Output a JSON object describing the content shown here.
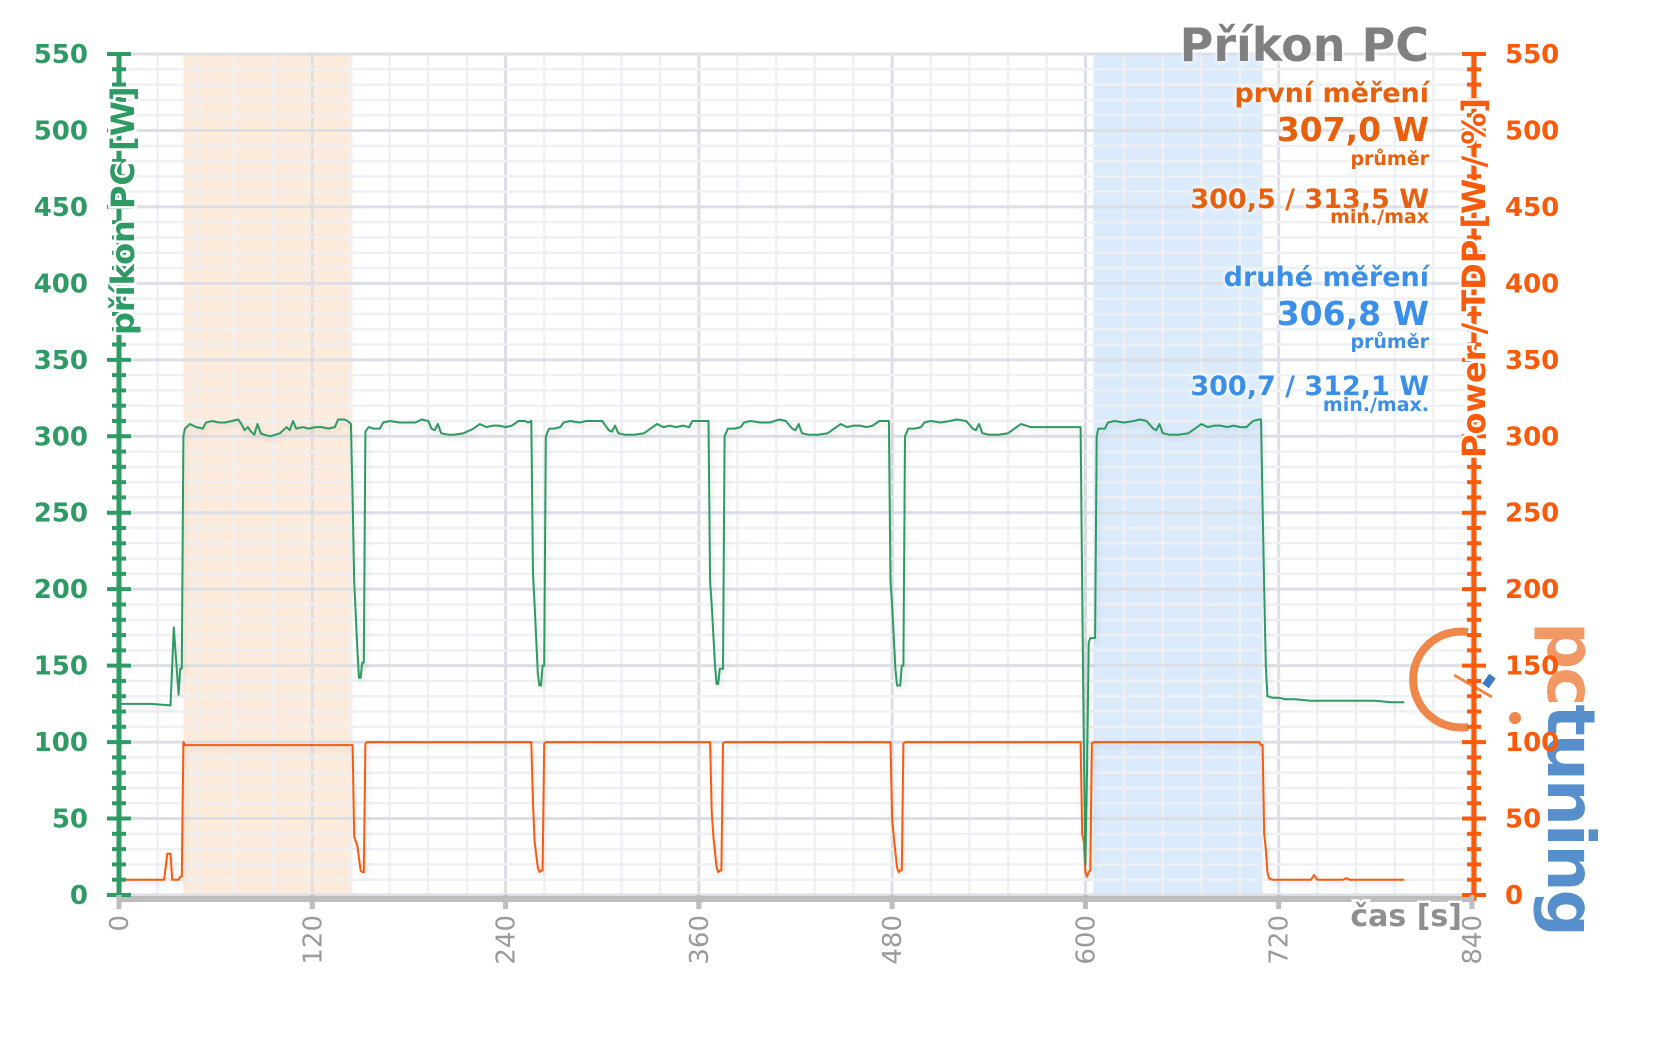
{
  "chart_data": {
    "type": "line",
    "title": "Příkon PC",
    "xlabel": "čas [s]",
    "ylabel_left": "příkon PC [W]",
    "ylabel_right": "Power / TDP [W / %]",
    "xlim": [
      0,
      840
    ],
    "ylim": [
      0,
      550
    ],
    "x_ticks": [
      0,
      120,
      240,
      360,
      480,
      600,
      720,
      840
    ],
    "y_ticks": [
      0,
      50,
      100,
      150,
      200,
      250,
      300,
      350,
      400,
      450,
      500,
      550
    ],
    "grid": true,
    "highlight_bands": [
      {
        "name": "první měření",
        "x_start": 40,
        "x_end": 145,
        "color": "#fde9d6"
      },
      {
        "name": "druhé měření",
        "x_start": 605,
        "x_end": 710,
        "color": "#d6e8fb"
      }
    ],
    "series": [
      {
        "name": "příkon PC",
        "color": "#2e9a64",
        "axis": "left",
        "points": [
          [
            0,
            125
          ],
          [
            20,
            125
          ],
          [
            32,
            124
          ],
          [
            33,
            150
          ],
          [
            34,
            175
          ],
          [
            35,
            160
          ],
          [
            37,
            131
          ],
          [
            38,
            148
          ],
          [
            39,
            148
          ],
          [
            40,
            300
          ],
          [
            41,
            305
          ],
          [
            44,
            308
          ],
          [
            48,
            306
          ],
          [
            52,
            305
          ],
          [
            54,
            309
          ],
          [
            58,
            310
          ],
          [
            62,
            309
          ],
          [
            66,
            309
          ],
          [
            70,
            310
          ],
          [
            74,
            311
          ],
          [
            76,
            308
          ],
          [
            78,
            304
          ],
          [
            80,
            306
          ],
          [
            82,
            303
          ],
          [
            84,
            301
          ],
          [
            86,
            308
          ],
          [
            88,
            302
          ],
          [
            90,
            301
          ],
          [
            94,
            300
          ],
          [
            100,
            302
          ],
          [
            104,
            306
          ],
          [
            106,
            304
          ],
          [
            108,
            310
          ],
          [
            110,
            305
          ],
          [
            114,
            306
          ],
          [
            118,
            305
          ],
          [
            122,
            306
          ],
          [
            126,
            306
          ],
          [
            130,
            305
          ],
          [
            134,
            306
          ],
          [
            136,
            311
          ],
          [
            140,
            311
          ],
          [
            142,
            310
          ],
          [
            144,
            308
          ],
          [
            145,
            260
          ],
          [
            146,
            205
          ],
          [
            148,
            160
          ],
          [
            149,
            142
          ],
          [
            150,
            142
          ],
          [
            151,
            152
          ],
          [
            152,
            152
          ],
          [
            153,
            303
          ],
          [
            155,
            306
          ],
          [
            158,
            305
          ],
          [
            162,
            305
          ],
          [
            164,
            309
          ],
          [
            168,
            310
          ],
          [
            174,
            309
          ],
          [
            178,
            309
          ],
          [
            184,
            309
          ],
          [
            188,
            311
          ],
          [
            192,
            310
          ],
          [
            194,
            305
          ],
          [
            196,
            304
          ],
          [
            198,
            308
          ],
          [
            200,
            302
          ],
          [
            204,
            301
          ],
          [
            208,
            301
          ],
          [
            214,
            302
          ],
          [
            220,
            305
          ],
          [
            224,
            308
          ],
          [
            228,
            306
          ],
          [
            232,
            307
          ],
          [
            236,
            307
          ],
          [
            240,
            306
          ],
          [
            244,
            307
          ],
          [
            248,
            310
          ],
          [
            252,
            310
          ],
          [
            254,
            309
          ],
          [
            256,
            310
          ],
          [
            257,
            210
          ],
          [
            258,
            190
          ],
          [
            260,
            145
          ],
          [
            261,
            137
          ],
          [
            262,
            137
          ],
          [
            263,
            150
          ],
          [
            264,
            150
          ],
          [
            265,
            300
          ],
          [
            267,
            305
          ],
          [
            270,
            305
          ],
          [
            274,
            306
          ],
          [
            276,
            309
          ],
          [
            280,
            310
          ],
          [
            286,
            309
          ],
          [
            290,
            310
          ],
          [
            294,
            310
          ],
          [
            300,
            310
          ],
          [
            304,
            304
          ],
          [
            306,
            303
          ],
          [
            308,
            307
          ],
          [
            310,
            302
          ],
          [
            314,
            301
          ],
          [
            320,
            301
          ],
          [
            326,
            302
          ],
          [
            330,
            305
          ],
          [
            334,
            308
          ],
          [
            338,
            306
          ],
          [
            342,
            307
          ],
          [
            346,
            306
          ],
          [
            350,
            307
          ],
          [
            354,
            306
          ],
          [
            356,
            310
          ],
          [
            360,
            310
          ],
          [
            366,
            310
          ],
          [
            367,
            205
          ],
          [
            368,
            190
          ],
          [
            370,
            150
          ],
          [
            371,
            138
          ],
          [
            372,
            138
          ],
          [
            373,
            148
          ],
          [
            375,
            148
          ],
          [
            376,
            300
          ],
          [
            378,
            305
          ],
          [
            382,
            305
          ],
          [
            386,
            306
          ],
          [
            388,
            309
          ],
          [
            392,
            310
          ],
          [
            398,
            309
          ],
          [
            404,
            309
          ],
          [
            410,
            311
          ],
          [
            414,
            310
          ],
          [
            418,
            305
          ],
          [
            420,
            304
          ],
          [
            422,
            308
          ],
          [
            424,
            302
          ],
          [
            428,
            301
          ],
          [
            434,
            301
          ],
          [
            440,
            302
          ],
          [
            444,
            305
          ],
          [
            448,
            308
          ],
          [
            452,
            306
          ],
          [
            456,
            307
          ],
          [
            460,
            307
          ],
          [
            464,
            306
          ],
          [
            468,
            307
          ],
          [
            472,
            310
          ],
          [
            476,
            310
          ],
          [
            478,
            310
          ],
          [
            479,
            205
          ],
          [
            480,
            190
          ],
          [
            482,
            148
          ],
          [
            483,
            137
          ],
          [
            485,
            137
          ],
          [
            486,
            150
          ],
          [
            487,
            150
          ],
          [
            488,
            300
          ],
          [
            490,
            305
          ],
          [
            494,
            305
          ],
          [
            498,
            306
          ],
          [
            500,
            309
          ],
          [
            504,
            310
          ],
          [
            510,
            309
          ],
          [
            516,
            310
          ],
          [
            520,
            311
          ],
          [
            526,
            310
          ],
          [
            530,
            305
          ],
          [
            532,
            304
          ],
          [
            534,
            308
          ],
          [
            536,
            302
          ],
          [
            540,
            301
          ],
          [
            546,
            301
          ],
          [
            552,
            302
          ],
          [
            556,
            305
          ],
          [
            560,
            308
          ],
          [
            566,
            306
          ],
          [
            570,
            306
          ],
          [
            576,
            306
          ],
          [
            582,
            306
          ],
          [
            586,
            306
          ],
          [
            590,
            306
          ],
          [
            597,
            306
          ],
          [
            598,
            200
          ],
          [
            599,
            100
          ],
          [
            600,
            20
          ],
          [
            601,
            80
          ],
          [
            602,
            165
          ],
          [
            603,
            168
          ],
          [
            606,
            168
          ],
          [
            607,
            300
          ],
          [
            608,
            305
          ],
          [
            612,
            305
          ],
          [
            614,
            309
          ],
          [
            618,
            310
          ],
          [
            624,
            309
          ],
          [
            630,
            310
          ],
          [
            634,
            311
          ],
          [
            638,
            310
          ],
          [
            642,
            305
          ],
          [
            644,
            304
          ],
          [
            646,
            308
          ],
          [
            648,
            302
          ],
          [
            652,
            301
          ],
          [
            658,
            301
          ],
          [
            664,
            302
          ],
          [
            668,
            305
          ],
          [
            672,
            308
          ],
          [
            676,
            306
          ],
          [
            680,
            307
          ],
          [
            684,
            307
          ],
          [
            688,
            306
          ],
          [
            692,
            307
          ],
          [
            696,
            306
          ],
          [
            700,
            306
          ],
          [
            704,
            310
          ],
          [
            708,
            311
          ],
          [
            709,
            311
          ],
          [
            711,
            200
          ],
          [
            712,
            150
          ],
          [
            713,
            130
          ],
          [
            716,
            129
          ],
          [
            720,
            129
          ],
          [
            724,
            128
          ],
          [
            730,
            128
          ],
          [
            740,
            127
          ],
          [
            750,
            127
          ],
          [
            760,
            127
          ],
          [
            770,
            127
          ],
          [
            780,
            127
          ],
          [
            790,
            126
          ],
          [
            798,
            126
          ]
        ]
      },
      {
        "name": "Power / TDP",
        "color": "#fa5a0a",
        "axis": "right",
        "points": [
          [
            0,
            10
          ],
          [
            20,
            10
          ],
          [
            28,
            10
          ],
          [
            30,
            27
          ],
          [
            32,
            27
          ],
          [
            33,
            10
          ],
          [
            35,
            10
          ],
          [
            37,
            10
          ],
          [
            38,
            12
          ],
          [
            39,
            12
          ],
          [
            40,
            100
          ],
          [
            41,
            98
          ],
          [
            145,
            98
          ],
          [
            146,
            38
          ],
          [
            148,
            32
          ],
          [
            150,
            16
          ],
          [
            151,
            15
          ],
          [
            152,
            15
          ],
          [
            153,
            99
          ],
          [
            154,
            100
          ],
          [
            256,
            100
          ],
          [
            257,
            60
          ],
          [
            258,
            35
          ],
          [
            260,
            18
          ],
          [
            261,
            15
          ],
          [
            262,
            16
          ],
          [
            263,
            16
          ],
          [
            264,
            99
          ],
          [
            265,
            100
          ],
          [
            367,
            100
          ],
          [
            368,
            55
          ],
          [
            369,
            38
          ],
          [
            371,
            18
          ],
          [
            372,
            15
          ],
          [
            373,
            16
          ],
          [
            374,
            16
          ],
          [
            375,
            99
          ],
          [
            376,
            100
          ],
          [
            479,
            100
          ],
          [
            480,
            50
          ],
          [
            481,
            38
          ],
          [
            483,
            18
          ],
          [
            484,
            15
          ],
          [
            485,
            16
          ],
          [
            486,
            16
          ],
          [
            487,
            99
          ],
          [
            488,
            100
          ],
          [
            597,
            100
          ],
          [
            598,
            40
          ],
          [
            599,
            35
          ],
          [
            600,
            15
          ],
          [
            601,
            12
          ],
          [
            602,
            15
          ],
          [
            603,
            16
          ],
          [
            604,
            99
          ],
          [
            605,
            100
          ],
          [
            708,
            100
          ],
          [
            709,
            98
          ],
          [
            710,
            98
          ],
          [
            711,
            40
          ],
          [
            712,
            30
          ],
          [
            713,
            15
          ],
          [
            714,
            11
          ],
          [
            716,
            10
          ],
          [
            740,
            10
          ],
          [
            742,
            13
          ],
          [
            744,
            10
          ],
          [
            760,
            10
          ],
          [
            762,
            11
          ],
          [
            764,
            10
          ],
          [
            798,
            10
          ]
        ]
      }
    ]
  },
  "title": "Příkon PC",
  "first_measurement": {
    "label": "první měření",
    "avg": "307,0 W",
    "avg_label": "průměr",
    "minmax": "300,5 / 313,5 W",
    "minmax_label": "min./max",
    "color": "#e8600e"
  },
  "second_measurement": {
    "label": "druhé měření",
    "avg": "306,8 W",
    "avg_label": "průměr",
    "minmax": "300,7 / 312,1 W",
    "minmax_label": "min./max.",
    "color": "#3b8fe8"
  },
  "axes": {
    "left_label": "příkon PC [W]",
    "right_label": "Power / TDP [W / %]",
    "x_label": "čas [s]",
    "left_color": "#2e9a64",
    "right_color": "#fa5a0a",
    "x_color": "#999999"
  },
  "logo": {
    "text": "pctuning",
    "orange": "#f0874a",
    "blue": "#3a7cc4"
  }
}
